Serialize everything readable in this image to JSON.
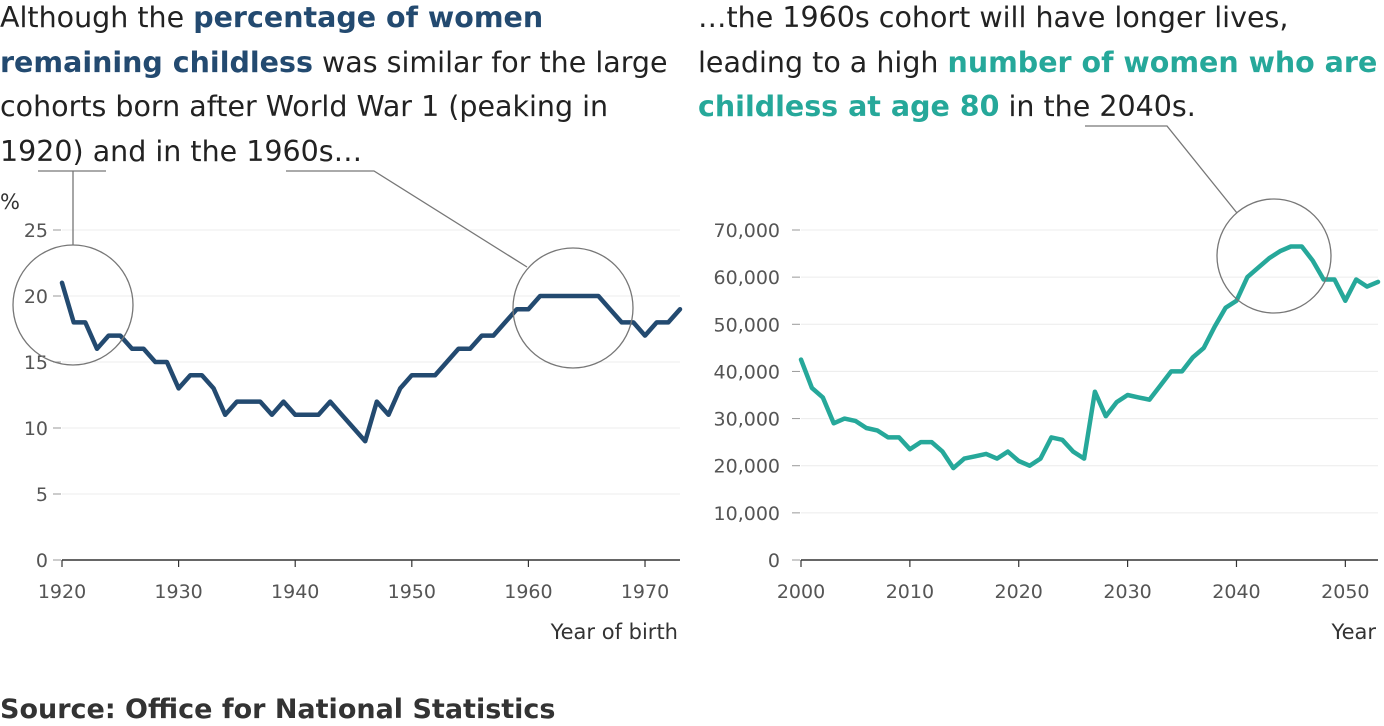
{
  "left_text": {
    "part1": "Although the ",
    "highlight": "percentage of women remaining childless",
    "part2": " was similar for the large cohorts born after World War 1 (peaking in ",
    "year1": "1920",
    "part3": ") and in the ",
    "year2": "1960s",
    "part4": "…"
  },
  "right_text": {
    "part1": "…the 1960s cohort will have longer lives, leading to a high ",
    "highlight": "number of women who are childless at age 80",
    "part2": " in the ",
    "year": "2040s",
    "part3": "."
  },
  "source": "Source: Office for National Statistics",
  "colors": {
    "navy": "#234a70",
    "teal": "#26a89a"
  },
  "chart_data": [
    {
      "type": "line",
      "ylabel": "%",
      "xlabel": "Year of birth",
      "ylim": [
        0,
        25
      ],
      "yticks": [
        0,
        5,
        10,
        15,
        20,
        25
      ],
      "xticks": [
        1920,
        1930,
        1940,
        1950,
        1960,
        1970
      ],
      "xlim": [
        1920,
        1973
      ],
      "grid": true,
      "x": [
        1920,
        1921,
        1922,
        1923,
        1924,
        1925,
        1926,
        1927,
        1928,
        1929,
        1930,
        1931,
        1932,
        1933,
        1934,
        1935,
        1936,
        1937,
        1938,
        1939,
        1940,
        1941,
        1942,
        1943,
        1944,
        1945,
        1946,
        1947,
        1948,
        1949,
        1950,
        1951,
        1952,
        1953,
        1954,
        1955,
        1956,
        1957,
        1958,
        1959,
        1960,
        1961,
        1962,
        1963,
        1964,
        1965,
        1966,
        1967,
        1968,
        1969,
        1970,
        1971,
        1972,
        1973
      ],
      "values": [
        21,
        18,
        18,
        16,
        17,
        17,
        16,
        16,
        15,
        15,
        13,
        14,
        14,
        13,
        11,
        12,
        12,
        12,
        11,
        12,
        11,
        11,
        11,
        12,
        11,
        10,
        9,
        12,
        11,
        13,
        14,
        14,
        14,
        15,
        16,
        16,
        17,
        17,
        18,
        19,
        19,
        20,
        20,
        20,
        20,
        20,
        20,
        19,
        18,
        18,
        17,
        18,
        18,
        19
      ]
    },
    {
      "type": "line",
      "ylabel": "",
      "xlabel": "Year",
      "ylim": [
        0,
        70000
      ],
      "yticks": [
        0,
        10000,
        20000,
        30000,
        40000,
        50000,
        60000,
        70000
      ],
      "xticks": [
        2000,
        2010,
        2020,
        2030,
        2040,
        2050
      ],
      "xlim": [
        2000,
        2053
      ],
      "grid": true,
      "x": [
        2000,
        2001,
        2002,
        2003,
        2004,
        2005,
        2006,
        2007,
        2008,
        2009,
        2010,
        2011,
        2012,
        2013,
        2014,
        2015,
        2016,
        2017,
        2018,
        2019,
        2020,
        2021,
        2022,
        2023,
        2024,
        2025,
        2026,
        2027,
        2028,
        2029,
        2030,
        2031,
        2032,
        2033,
        2034,
        2035,
        2036,
        2037,
        2038,
        2039,
        2040,
        2041,
        2042,
        2043,
        2044,
        2045,
        2046,
        2047,
        2048,
        2049,
        2050,
        2051,
        2052,
        2053
      ],
      "values": [
        42500,
        36500,
        34500,
        29000,
        30000,
        29500,
        28000,
        27500,
        26000,
        26000,
        23500,
        25000,
        25000,
        23000,
        19500,
        21500,
        22000,
        22500,
        21500,
        23000,
        21000,
        20000,
        21500,
        26000,
        25500,
        23000,
        21500,
        35700,
        30500,
        33500,
        35000,
        34500,
        34000,
        37000,
        40000,
        40000,
        43000,
        45000,
        49500,
        53500,
        55000,
        60000,
        62000,
        64000,
        65500,
        66500,
        66500,
        63500,
        59500,
        59500,
        55000,
        59500,
        58000,
        59000
      ]
    }
  ]
}
